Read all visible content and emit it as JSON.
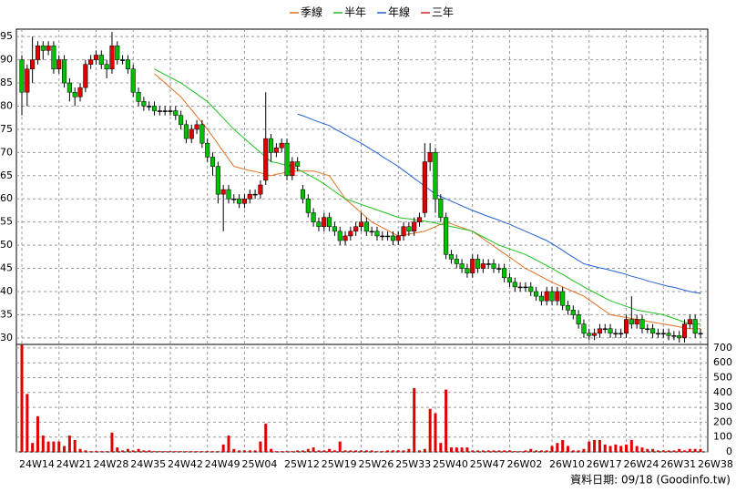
{
  "chart_data": {
    "type": "candlestick",
    "categories": [
      "24W14",
      null,
      null,
      null,
      null,
      null,
      null,
      "24W21",
      null,
      null,
      null,
      null,
      null,
      null,
      "24W28",
      null,
      null,
      null,
      null,
      null,
      null,
      "24W35",
      null,
      null,
      null,
      null,
      null,
      null,
      "24W42",
      null,
      null,
      null,
      null,
      null,
      null,
      "24W49",
      null,
      null,
      null,
      null,
      null,
      null,
      "25W04",
      null,
      null,
      null,
      null,
      null,
      null,
      null,
      "25W12",
      null,
      null,
      null,
      null,
      null,
      null,
      "25W19",
      null,
      null,
      null,
      null,
      null,
      null,
      "25W26",
      null,
      null,
      null,
      null,
      null,
      null,
      "25W33",
      null,
      null,
      null,
      null,
      null,
      null,
      "25W40",
      null,
      null,
      null,
      null,
      null,
      null,
      "25W47",
      null,
      null,
      null,
      null,
      null,
      null,
      "26W02",
      null,
      null,
      null,
      null,
      null,
      null,
      null,
      "26W10",
      null,
      null,
      null,
      null,
      null,
      null,
      "26W17",
      null,
      null,
      null,
      null,
      null,
      null,
      "26W24",
      null,
      null,
      null,
      null,
      null,
      null,
      "26W31",
      null,
      null,
      null,
      null,
      null,
      null,
      "26W38"
    ],
    "open": [
      90,
      83,
      88,
      90,
      93,
      92,
      93,
      88,
      90,
      85,
      83,
      82,
      84,
      89,
      90,
      91,
      89,
      88,
      93,
      90,
      90,
      88,
      83,
      81,
      80,
      80,
      79,
      79,
      79,
      79,
      78,
      76,
      73,
      75,
      76,
      72,
      69,
      67,
      61,
      62,
      60,
      60,
      59,
      60,
      61,
      61,
      64,
      73,
      70,
      71,
      72,
      65,
      68,
      62,
      60,
      57,
      55,
      54,
      56,
      54,
      53,
      51,
      52,
      53,
      54,
      55,
      53,
      53,
      52,
      52,
      52,
      51,
      52,
      54,
      53,
      55,
      57,
      68,
      70,
      60,
      56,
      48,
      47,
      46,
      45,
      44,
      47,
      45,
      46,
      46,
      45,
      45,
      43,
      42,
      41,
      41,
      41,
      40,
      39,
      38,
      40,
      38,
      40,
      37,
      36,
      35,
      33,
      31,
      30.5,
      31,
      32,
      32,
      31,
      31,
      31,
      34,
      33,
      34,
      32,
      32,
      31,
      31,
      31,
      30.5,
      30.5,
      30,
      33,
      34,
      31
    ],
    "high": [
      91,
      89,
      95,
      94,
      94,
      94,
      94,
      91,
      91,
      86,
      84,
      85,
      90,
      91,
      92,
      92,
      90,
      96,
      94,
      91,
      91,
      89,
      84,
      82,
      81,
      81,
      80,
      80,
      80,
      80,
      79,
      77,
      76,
      77,
      77,
      73,
      70,
      68,
      63,
      63,
      61,
      61,
      61,
      62,
      62,
      64,
      83,
      74,
      72,
      73,
      73,
      69,
      69,
      63,
      61,
      58,
      56,
      57,
      57,
      55,
      54,
      53,
      54,
      55,
      57,
      56,
      54,
      54,
      53,
      53,
      53,
      53,
      55,
      55,
      56,
      57,
      72,
      72,
      71,
      61,
      57,
      49,
      48,
      47,
      46,
      48,
      48,
      47,
      47,
      47,
      46,
      46,
      44,
      43,
      42,
      42,
      42,
      41,
      40,
      41,
      41,
      41,
      41,
      38,
      37,
      36,
      34,
      32,
      32,
      33,
      33,
      33,
      32,
      32,
      35,
      39,
      35,
      35,
      33,
      33,
      32,
      32,
      32,
      31.5,
      31.5,
      34,
      35,
      35,
      32
    ],
    "low": [
      78,
      80,
      85,
      89,
      90,
      91,
      87,
      87,
      84,
      81,
      80,
      81,
      83,
      88,
      89,
      88,
      86,
      87,
      89,
      89,
      87,
      82,
      80,
      79,
      79,
      78,
      78,
      78,
      78,
      77,
      75,
      72,
      72,
      74,
      71,
      68,
      65,
      59,
      53,
      59,
      59,
      58,
      58,
      59,
      60,
      60,
      63,
      68,
      69,
      70,
      64,
      64,
      66,
      59,
      56,
      54,
      53,
      53,
      53,
      52,
      50,
      50,
      51,
      52,
      53,
      52,
      52,
      51,
      51,
      51,
      50,
      50,
      51,
      52,
      52,
      54,
      56,
      66,
      57,
      55,
      47,
      46,
      45,
      44,
      43,
      43,
      44,
      44,
      45,
      44,
      44,
      42,
      41,
      40,
      40,
      40,
      39,
      38,
      37,
      37,
      37,
      37,
      36,
      35,
      34,
      32,
      30,
      29.5,
      29.5,
      30,
      31,
      30,
      30,
      30,
      30,
      32,
      32,
      31,
      31,
      30,
      30,
      30,
      29.5,
      29.5,
      29,
      29,
      32,
      30,
      30
    ],
    "close": [
      83,
      88,
      90,
      93,
      92,
      93,
      88,
      90,
      85,
      83,
      82,
      84,
      89,
      90,
      91,
      89,
      88,
      93,
      90,
      90,
      88,
      83,
      81,
      80,
      80,
      79,
      79,
      79,
      79,
      78,
      76,
      73,
      75,
      76,
      72,
      69,
      67,
      61,
      62,
      60,
      60,
      59,
      60,
      61,
      61,
      63,
      73,
      70,
      71,
      72,
      65,
      68,
      67,
      60,
      57,
      55,
      54,
      56,
      54,
      53,
      51,
      52,
      53,
      54,
      55,
      53,
      53,
      52,
      52,
      52,
      51,
      52,
      54,
      53,
      55,
      56,
      68,
      70,
      60,
      56,
      48,
      47,
      46,
      45,
      44,
      47,
      45,
      46,
      46,
      45,
      45,
      43,
      42,
      41,
      41,
      41,
      40,
      39,
      38,
      40,
      38,
      40,
      37,
      36,
      35,
      33,
      31,
      30.5,
      31,
      32,
      32,
      31,
      31,
      31,
      34,
      33,
      34,
      32,
      32,
      31,
      31,
      31,
      30.5,
      30.5,
      30,
      33,
      34,
      31,
      31
    ],
    "up_color": "#e00000",
    "down_color": "#00c000",
    "flat_color": "#000000",
    "volume": [
      720,
      390,
      60,
      240,
      110,
      70,
      70,
      70,
      40,
      110,
      80,
      20,
      10,
      5,
      5,
      5,
      5,
      130,
      30,
      10,
      20,
      10,
      20,
      10,
      10,
      5,
      5,
      5,
      5,
      5,
      5,
      5,
      5,
      5,
      5,
      5,
      5,
      5,
      50,
      110,
      20,
      10,
      10,
      10,
      10,
      70,
      190,
      20,
      5,
      5,
      5,
      5,
      10,
      10,
      20,
      30,
      10,
      10,
      20,
      10,
      70,
      10,
      10,
      10,
      10,
      10,
      10,
      5,
      5,
      10,
      10,
      10,
      10,
      20,
      430,
      10,
      20,
      290,
      260,
      60,
      420,
      30,
      30,
      30,
      30,
      10,
      10,
      10,
      10,
      10,
      10,
      10,
      10,
      5,
      5,
      10,
      20,
      10,
      10,
      10,
      40,
      60,
      80,
      40,
      10,
      10,
      20,
      70,
      80,
      80,
      50,
      40,
      50,
      40,
      50,
      80,
      40,
      30,
      20,
      20,
      10,
      10,
      10,
      10,
      20,
      10,
      20,
      20,
      20
    ],
    "volume_color": "#e00000",
    "series": [
      {
        "name": "季線",
        "color": "#e07020",
        "values": [
          null,
          null,
          null,
          null,
          null,
          null,
          null,
          null,
          null,
          null,
          null,
          null,
          null,
          null,
          null,
          null,
          null,
          null,
          null,
          null,
          null,
          null,
          null,
          null,
          null,
          87,
          86,
          85,
          84,
          83,
          82,
          80.6,
          79.2,
          77.8,
          76.4,
          75,
          73.4,
          71.8,
          70.2,
          68.6,
          67,
          66.7,
          66.4,
          66.1,
          65.9,
          65.6,
          65.3,
          65,
          65.3,
          65.5,
          65.8,
          66,
          66,
          66,
          66,
          66,
          65.7,
          65.3,
          65,
          63.3,
          61.7,
          60,
          59,
          58,
          57,
          56,
          55,
          54.4,
          53.8,
          53.2,
          52.6,
          52,
          52.2,
          52.4,
          52.6,
          52.8,
          53,
          53.5,
          54,
          54.5,
          55,
          54.6,
          54.2,
          53.8,
          53.4,
          53,
          52.2,
          51.4,
          50.6,
          49.8,
          49,
          48.2,
          47.4,
          46.6,
          45.8,
          45,
          44.4,
          43.8,
          43.2,
          42.6,
          42,
          41.5,
          41,
          40.5,
          40,
          39.5,
          39,
          38.2,
          37.4,
          36.6,
          35.8,
          35,
          34.8,
          34.6,
          34.4,
          34.2,
          34,
          33.8,
          33.6,
          33.4,
          33.2,
          33,
          32.8,
          32.6,
          32.4,
          32.2,
          32,
          32,
          32
        ]
      },
      {
        "name": "半年",
        "color": "#20c020",
        "values": [
          null,
          null,
          null,
          null,
          null,
          null,
          null,
          null,
          null,
          null,
          null,
          null,
          null,
          null,
          null,
          null,
          null,
          null,
          null,
          null,
          null,
          null,
          null,
          null,
          null,
          88,
          87.4,
          86.8,
          86.2,
          85.6,
          85,
          84.2,
          83.4,
          82.6,
          81.8,
          81,
          79.8,
          78.6,
          77.4,
          76.2,
          75,
          74,
          73,
          72,
          71,
          70,
          69,
          68,
          67.8,
          67.5,
          67.3,
          67,
          66.4,
          65.8,
          65.2,
          64.6,
          64,
          63.2,
          62.4,
          61.6,
          60.8,
          60,
          59.6,
          59.2,
          58.8,
          58.4,
          58,
          57.6,
          57.2,
          56.8,
          56.4,
          56,
          55.8,
          55.7,
          55.5,
          55.3,
          55.2,
          55,
          54.8,
          54.5,
          54.3,
          54,
          53.8,
          53.5,
          53.3,
          53,
          52.4,
          51.8,
          51.2,
          50.6,
          50,
          49.6,
          49.2,
          48.8,
          48.4,
          48,
          47.4,
          46.8,
          46.2,
          45.6,
          45,
          44.3,
          43.7,
          43,
          42.3,
          41.7,
          41,
          40.4,
          39.8,
          39.2,
          38.6,
          38,
          37.6,
          37.2,
          36.8,
          36.4,
          36,
          35.8,
          35.6,
          35.4,
          35.2,
          35,
          34.6,
          34.2,
          33.8,
          33.4,
          33,
          33,
          33
        ]
      },
      {
        "name": "年線",
        "color": "#2060d0",
        "values": [
          null,
          null,
          null,
          null,
          null,
          null,
          null,
          null,
          null,
          null,
          null,
          null,
          null,
          null,
          null,
          null,
          null,
          null,
          null,
          null,
          null,
          null,
          null,
          null,
          null,
          null,
          null,
          null,
          null,
          null,
          null,
          null,
          null,
          null,
          null,
          null,
          null,
          null,
          null,
          null,
          null,
          null,
          null,
          null,
          null,
          null,
          null,
          null,
          null,
          null,
          null,
          null,
          78.3,
          77.9,
          77.5,
          77,
          76.6,
          76.2,
          75.8,
          75.1,
          74.5,
          73.9,
          73.2,
          72.6,
          72,
          71.3,
          70.6,
          69.9,
          69.1,
          68.4,
          67.7,
          67,
          66.1,
          65.3,
          64.4,
          63.6,
          62.7,
          61.9,
          61,
          60.5,
          60,
          59.5,
          59,
          58.5,
          58,
          57.5,
          57.1,
          56.6,
          56.2,
          55.8,
          55.4,
          54.9,
          54.5,
          54,
          53.5,
          53,
          52.5,
          52,
          51.5,
          51,
          50.3,
          49.6,
          48.9,
          48.1,
          47.4,
          46.7,
          46,
          45.7,
          45.4,
          45.1,
          44.9,
          44.6,
          44.3,
          44,
          43.7,
          43.3,
          43,
          42.7,
          42.3,
          42,
          41.7,
          41.4,
          41.1,
          40.9,
          40.6,
          40.3,
          40,
          39.8,
          39.6
        ]
      },
      {
        "name": "三年",
        "color": "#e02020",
        "values": [
          null,
          null,
          null,
          null,
          null,
          null,
          null,
          null,
          null,
          null,
          null,
          null,
          null,
          null,
          null,
          null,
          null,
          null,
          null,
          null,
          null,
          null,
          null,
          null,
          null,
          null,
          null,
          null,
          null,
          null,
          null,
          null,
          null,
          null,
          null,
          null,
          null,
          null,
          null,
          null,
          null,
          null,
          null,
          null,
          null,
          null,
          null,
          null,
          null,
          null,
          null,
          null,
          null,
          null,
          null,
          null,
          null,
          null,
          null,
          null,
          null,
          null,
          null,
          null,
          null,
          null,
          null,
          null,
          null,
          null,
          null,
          null,
          null,
          null,
          null,
          null,
          null,
          null,
          null,
          null,
          null,
          null,
          null,
          null,
          null,
          null,
          null,
          null,
          null,
          null,
          null,
          null,
          null,
          null,
          null,
          null,
          null,
          null,
          null,
          null,
          null,
          null,
          null,
          null,
          null,
          null,
          null,
          null,
          null,
          null,
          null,
          null,
          null,
          null,
          null,
          null,
          null,
          null,
          null,
          null,
          null,
          null,
          null,
          null,
          null,
          null,
          null,
          null,
          null
        ]
      }
    ],
    "ylim": [
      28.6,
      96.6
    ],
    "yticks": [
      30,
      35,
      40,
      45,
      50,
      55,
      60,
      65,
      70,
      75,
      80,
      85,
      90,
      95
    ],
    "volume_ylim": [
      0,
      724
    ],
    "volume_yticks": [
      0,
      100,
      200,
      300,
      400,
      500,
      600,
      700
    ],
    "grid": true
  },
  "footer": "資料日期: 09/18  (Goodinfo.tw)"
}
